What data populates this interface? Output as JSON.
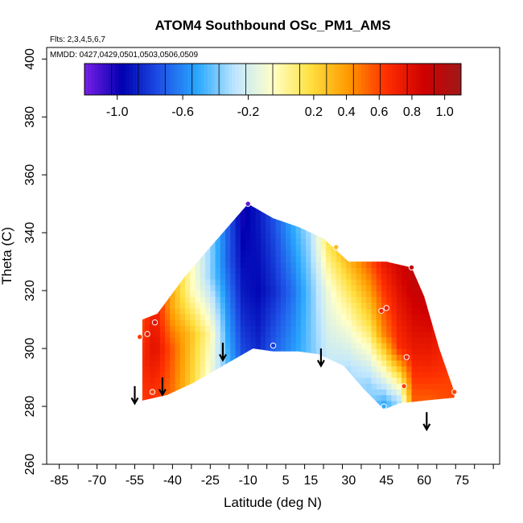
{
  "chart_data": {
    "type": "heatmap",
    "title": "ATOM4 Southbound OSc_PM1_AMS",
    "flights_label": "Flts: 2,3,4,5,6,7",
    "dates_label": "MMDD: 0427,0429,0501,0503,0506,0509",
    "xlabel": "Latitude (deg N)",
    "ylabel": "Theta (C)",
    "xlim": [
      -90,
      90
    ],
    "ylim": [
      260,
      404
    ],
    "x_ticks": [
      -85,
      -70,
      -55,
      -40,
      -25,
      -10,
      5,
      15,
      30,
      45,
      60,
      75
    ],
    "y_ticks": [
      260,
      280,
      300,
      320,
      340,
      360,
      380,
      400
    ],
    "colorbar": {
      "range": [
        -1.2,
        1.1
      ],
      "tick_values": [
        -1.0,
        -0.6,
        -0.2,
        0.2,
        0.4,
        0.6,
        0.8,
        1.0
      ],
      "tick_labels": [
        "-1.0",
        "-0.6",
        "-0.2",
        "0.2",
        "0.4",
        "0.6",
        "0.8",
        "1.0"
      ],
      "colors": [
        "#7a1fe6",
        "#0000b0",
        "#1e50e6",
        "#2aa8ff",
        "#bfe6ff",
        "#ffffc8",
        "#ffe040",
        "#ff9a00",
        "#ff3000",
        "#d00000",
        "#a01818"
      ]
    },
    "field_outline": [
      [
        -52,
        282
      ],
      [
        -52,
        310
      ],
      [
        -46,
        312
      ],
      [
        -35,
        325
      ],
      [
        -20,
        340
      ],
      [
        -10,
        350
      ],
      [
        0,
        345
      ],
      [
        10,
        342
      ],
      [
        20,
        338
      ],
      [
        30,
        330
      ],
      [
        45,
        330
      ],
      [
        55,
        328
      ],
      [
        60,
        318
      ],
      [
        66,
        300
      ],
      [
        72,
        285
      ],
      [
        72,
        283
      ],
      [
        60,
        282
      ],
      [
        50,
        281
      ],
      [
        44,
        279
      ],
      [
        36,
        286
      ],
      [
        28,
        294
      ],
      [
        18,
        298
      ],
      [
        10,
        299
      ],
      [
        0,
        299
      ],
      [
        -8,
        300
      ],
      [
        -20,
        294
      ],
      [
        -32,
        288
      ],
      [
        -42,
        284
      ]
    ],
    "field_values": [
      {
        "x": -52,
        "values": {
          "282": 0.62,
          "295": 0.68,
          "310": 0.6
        }
      },
      {
        "x": -47,
        "values": {
          "285": 0.65,
          "300": 0.8,
          "310": 0.75
        }
      },
      {
        "x": -40,
        "values": {
          "286": 0.5,
          "300": 0.55,
          "315": 0.35
        }
      },
      {
        "x": -33,
        "values": {
          "288": 0.25,
          "305": 0.3,
          "320": 0.0
        }
      },
      {
        "x": -25,
        "values": {
          "291": -0.1,
          "305": 0.0,
          "325": -0.35
        }
      },
      {
        "x": -18,
        "values": {
          "294": -0.45,
          "310": -0.55,
          "330": -0.7
        }
      },
      {
        "x": -12,
        "values": {
          "297": -0.75,
          "320": -0.9,
          "345": -1.0
        }
      },
      {
        "x": -6,
        "values": {
          "299": -0.85,
          "320": -0.95,
          "345": -0.9
        }
      },
      {
        "x": 0,
        "values": {
          "299": -0.7,
          "320": -0.85,
          "344": -0.75
        }
      },
      {
        "x": 8,
        "values": {
          "299": -0.55,
          "320": -0.65,
          "342": -0.5
        }
      },
      {
        "x": 15,
        "values": {
          "298": -0.4,
          "320": -0.4,
          "340": -0.3
        }
      },
      {
        "x": 22,
        "values": {
          "296": -0.25,
          "320": -0.1,
          "336": 0.15
        }
      },
      {
        "x": 30,
        "values": {
          "293": -0.3,
          "315": 0.05,
          "332": 0.35
        }
      },
      {
        "x": 38,
        "values": {
          "288": -0.35,
          "310": 0.2,
          "330": 0.55
        }
      },
      {
        "x": 44,
        "values": {
          "281": -0.5,
          "305": 0.45,
          "330": 0.75
        }
      },
      {
        "x": 50,
        "values": {
          "282": -0.3,
          "300": 0.65,
          "328": 0.85
        }
      },
      {
        "x": 56,
        "values": {
          "283": 0.55,
          "300": 0.75,
          "325": 0.95
        }
      },
      {
        "x": 62,
        "values": {
          "283": 0.55,
          "295": 0.7,
          "315": 0.9
        }
      },
      {
        "x": 68,
        "values": {
          "284": 0.58,
          "290": 0.62,
          "300": 0.7
        }
      },
      {
        "x": 72,
        "values": {
          "284": 0.6
        }
      }
    ],
    "sample_points": [
      {
        "x": -10,
        "y": 350,
        "value": -1.15
      },
      {
        "x": 25,
        "y": 335,
        "value": 0.3
      },
      {
        "x": 55,
        "y": 328,
        "value": 0.95
      },
      {
        "x": -47,
        "y": 309,
        "value": 0.8
      },
      {
        "x": -50,
        "y": 305,
        "value": 0.75
      },
      {
        "x": -53,
        "y": 304,
        "value": 0.6
      },
      {
        "x": 43,
        "y": 313,
        "value": 0.7
      },
      {
        "x": 45,
        "y": 314,
        "value": 0.72
      },
      {
        "x": 0,
        "y": 301,
        "value": -0.8
      },
      {
        "x": 53,
        "y": 297,
        "value": 0.7
      },
      {
        "x": 52,
        "y": 287,
        "value": 0.6
      },
      {
        "x": -48,
        "y": 285,
        "value": 0.6
      },
      {
        "x": 44,
        "y": 280,
        "value": -0.5
      },
      {
        "x": 72,
        "y": 285,
        "value": 0.6
      }
    ],
    "arrows": [
      {
        "x": -55,
        "y_top": 287,
        "y_bottom": 281
      },
      {
        "x": -44,
        "y_top": 290,
        "y_bottom": 284
      },
      {
        "x": -20,
        "y_top": 302,
        "y_bottom": 296
      },
      {
        "x": 19,
        "y_top": 300,
        "y_bottom": 294
      },
      {
        "x": 61,
        "y_top": 278,
        "y_bottom": 272
      }
    ],
    "grid": false,
    "legend": "top-inside"
  }
}
